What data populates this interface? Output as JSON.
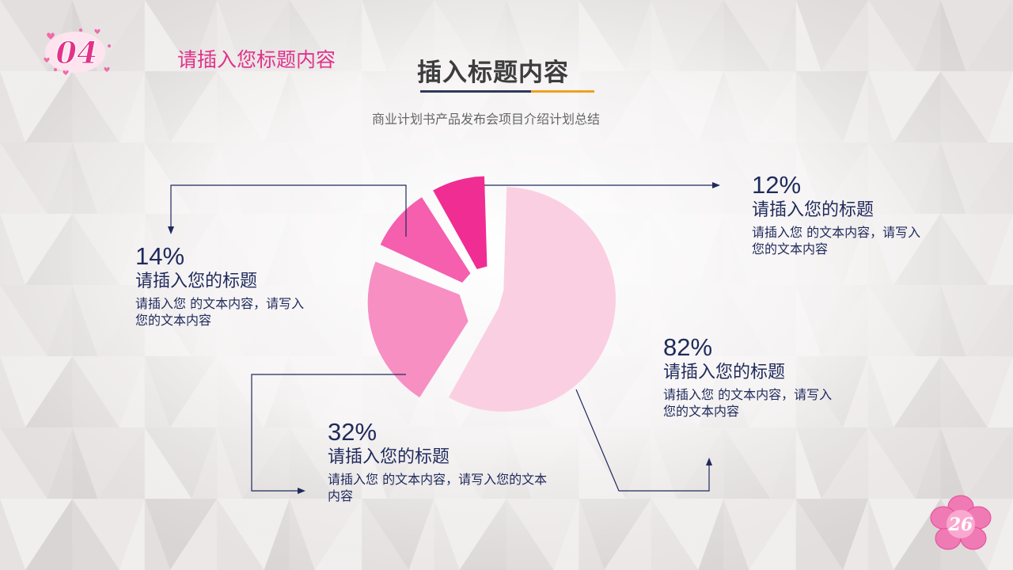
{
  "header": {
    "section_number": "04",
    "section_title": "请插入您标题内容",
    "page_title": "插入标题内容",
    "subtitle": "商业计划书产品发布会项目介绍计划总结"
  },
  "page_number": "26",
  "colors": {
    "accent": "#e0338a",
    "text_dark": "#1f2a5c",
    "underline_dark": "#2f3a5a",
    "underline_orange": "#f0a020",
    "slice_light": "#fbcfe2",
    "slice_medium": "#f78fc3",
    "slice_pink": "#f55fae",
    "slice_hot": "#f02d93"
  },
  "chart_data": {
    "type": "pie",
    "slices": [
      {
        "label": "请插入您的标题",
        "value": 82,
        "percent_label": "82%",
        "color": "#fbcfe2",
        "exploded": false
      },
      {
        "label": "请插入您的标题",
        "value": 32,
        "percent_label": "32%",
        "color": "#f78fc3",
        "exploded": true
      },
      {
        "label": "请插入您的标题",
        "value": 14,
        "percent_label": "14%",
        "color": "#f55fae",
        "exploded": true
      },
      {
        "label": "请插入您的标题",
        "value": 12,
        "percent_label": "12%",
        "color": "#f02d93",
        "exploded": true
      }
    ]
  },
  "callouts": [
    {
      "percent": "12%",
      "title": "请插入您的标题",
      "body": "请插入您 的文本内容，请写入您的文本内容"
    },
    {
      "percent": "14%",
      "title": "请插入您的标题",
      "body": "请插入您 的文本内容，请写入您的文本内容"
    },
    {
      "percent": "82%",
      "title": "请插入您的标题",
      "body": "请插入您 的文本内容，请写入您的文本内容"
    },
    {
      "percent": "32%",
      "title": "请插入您的标题",
      "body": "请插入您 的文本内容，请写入您的文本内容"
    }
  ]
}
